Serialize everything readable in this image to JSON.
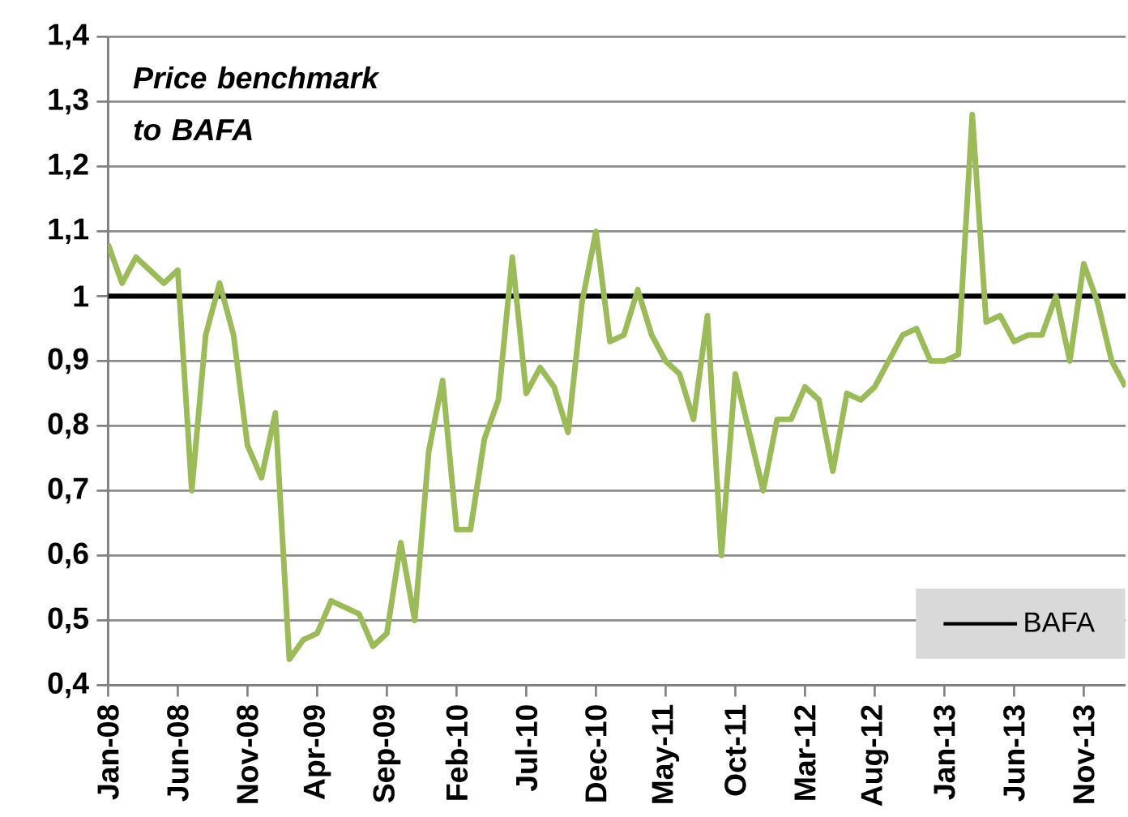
{
  "chart_data": {
    "type": "line",
    "title": "Price benchmark to BAFA",
    "x": [
      "2008-01",
      "2008-02",
      "2008-03",
      "2008-04",
      "2008-05",
      "2008-06",
      "2008-07",
      "2008-08",
      "2008-09",
      "2008-10",
      "2008-11",
      "2008-12",
      "2009-01",
      "2009-02",
      "2009-03",
      "2009-04",
      "2009-05",
      "2009-06",
      "2009-07",
      "2009-08",
      "2009-09",
      "2009-10",
      "2009-11",
      "2009-12",
      "2010-01",
      "2010-02",
      "2010-03",
      "2010-04",
      "2010-05",
      "2010-06",
      "2010-07",
      "2010-08",
      "2010-09",
      "2010-10",
      "2010-11",
      "2010-12",
      "2011-01",
      "2011-02",
      "2011-03",
      "2011-04",
      "2011-05",
      "2011-06",
      "2011-07",
      "2011-08",
      "2011-09",
      "2011-10",
      "2011-11",
      "2011-12",
      "2012-01",
      "2012-02",
      "2012-03",
      "2012-04",
      "2012-05",
      "2012-06",
      "2012-07",
      "2012-08",
      "2012-09",
      "2012-10",
      "2012-11",
      "2012-12",
      "2013-01",
      "2013-02",
      "2013-03",
      "2013-04",
      "2013-05",
      "2013-06",
      "2013-07",
      "2013-08",
      "2013-09",
      "2013-10",
      "2013-11",
      "2013-12",
      "2014-01",
      "2014-02"
    ],
    "series": [
      {
        "color": "#9bbb59",
        "values": [
          1.08,
          1.02,
          1.06,
          1.04,
          1.02,
          1.04,
          0.7,
          0.94,
          1.02,
          0.94,
          0.77,
          0.72,
          0.82,
          0.44,
          0.47,
          0.48,
          0.53,
          0.52,
          0.51,
          0.46,
          0.48,
          0.62,
          0.5,
          0.76,
          0.87,
          0.64,
          0.64,
          0.78,
          0.84,
          1.06,
          0.85,
          0.89,
          0.86,
          0.79,
          0.99,
          1.1,
          0.93,
          0.94,
          1.01,
          0.94,
          0.9,
          0.88,
          0.81,
          0.97,
          0.6,
          0.88,
          0.79,
          0.7,
          0.81,
          0.81,
          0.86,
          0.84,
          0.73,
          0.85,
          0.84,
          0.86,
          0.9,
          0.94,
          0.95,
          0.9,
          0.9,
          0.91,
          1.28,
          0.96,
          0.97,
          0.93,
          0.94,
          0.94,
          1.0,
          0.9,
          1.05,
          0.99,
          0.9,
          0.86
        ]
      }
    ],
    "xlim": [
      "2008-01",
      "2014-02"
    ],
    "xticks": [
      {
        "value": "2008-01",
        "label": "Jan-08"
      },
      {
        "value": "2008-06",
        "label": "Jun-08"
      },
      {
        "value": "2008-11",
        "label": "Nov-08"
      },
      {
        "value": "2009-04",
        "label": "Apr-09"
      },
      {
        "value": "2009-09",
        "label": "Sep-09"
      },
      {
        "value": "2010-02",
        "label": "Feb-10"
      },
      {
        "value": "2010-07",
        "label": "Jul-10"
      },
      {
        "value": "2010-12",
        "label": "Dec-10"
      },
      {
        "value": "2011-05",
        "label": "May-11"
      },
      {
        "value": "2011-10",
        "label": "Oct-11"
      },
      {
        "value": "2012-03",
        "label": "Mar-12"
      },
      {
        "value": "2012-08",
        "label": "Aug-12"
      },
      {
        "value": "2013-01",
        "label": "Jan-13"
      },
      {
        "value": "2013-06",
        "label": "Jun-13"
      },
      {
        "value": "2013-11",
        "label": "Nov-13"
      }
    ],
    "ylim": [
      0.4,
      1.4
    ],
    "yticks": [
      {
        "value": 0.4,
        "label": "0,4"
      },
      {
        "value": 0.5,
        "label": "0,5"
      },
      {
        "value": 0.6,
        "label": "0,6"
      },
      {
        "value": 0.7,
        "label": "0,7"
      },
      {
        "value": 0.8,
        "label": "0,8"
      },
      {
        "value": 0.9,
        "label": "0,9"
      },
      1,
      {
        "value": 1.1,
        "label": "1,1"
      },
      {
        "value": 1.2,
        "label": "1,2"
      },
      {
        "value": 1.3,
        "label": "1,3"
      },
      {
        "value": 1.4,
        "label": "1,4"
      }
    ],
    "grid": "y",
    "ref_lines": [
      {
        "axis": "y",
        "value": 1,
        "label": "BAFA",
        "color": "#000000"
      }
    ],
    "legend": "bottom right"
  }
}
